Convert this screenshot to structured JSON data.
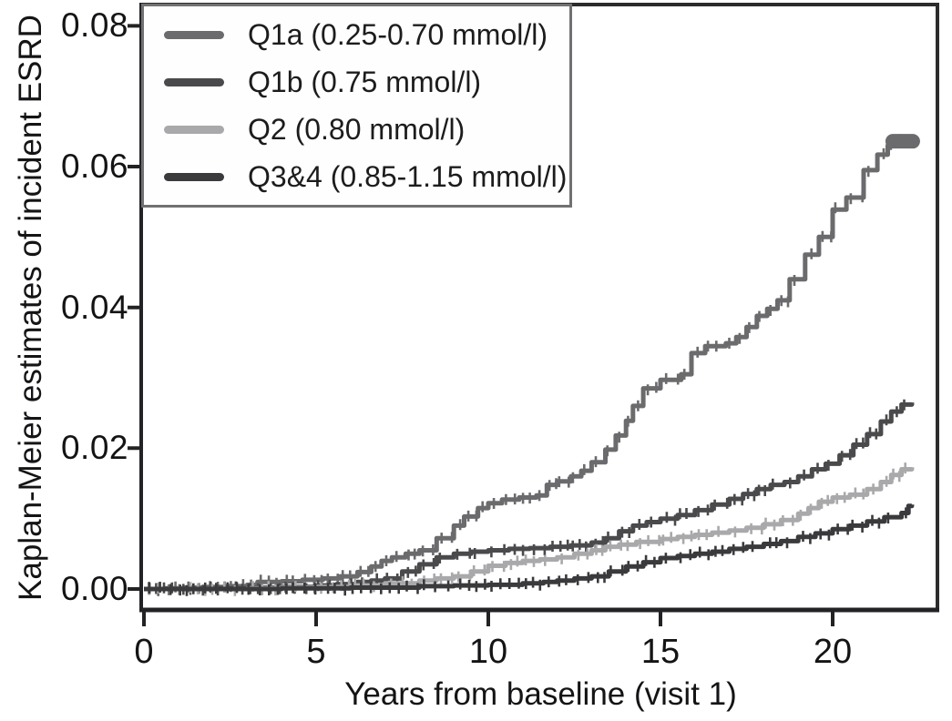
{
  "chart_data": {
    "type": "line",
    "subtype": "kaplan-meier-step-curves-with-censoring-ticks",
    "title": "",
    "xlabel": "Years from baseline (visit 1)",
    "ylabel": "Kaplan-Meier estimates of incident ESRD",
    "xlim": [
      0,
      23.1
    ],
    "ylim": [
      0,
      0.08
    ],
    "grid": false,
    "legend_position": "top-left",
    "background": "#ffffff",
    "axis_color": "#232325",
    "frame_color": "#2c2c2e",
    "xticks": [
      0,
      5,
      10,
      15,
      20
    ],
    "xtick_labels": [
      "0",
      "5",
      "10",
      "15",
      "20"
    ],
    "yticks": [
      0.08,
      0.06,
      0.04,
      0.02,
      0.0
    ],
    "ytick_labels": [
      "0.08",
      "0.06",
      "0.04",
      "0.02",
      "0.00"
    ],
    "series": [
      {
        "name": "Q1a",
        "label": "Q1a (0.25-0.70 mmol/l)",
        "color": "#6b6b6e",
        "end_cap": true,
        "points": [
          [
            0,
            0
          ],
          [
            0.6,
            0.0001
          ],
          [
            1.2,
            0.0002
          ],
          [
            1.8,
            0.0003
          ],
          [
            2.4,
            0.0004
          ],
          [
            3,
            0.0006
          ],
          [
            3.3,
            0.001
          ],
          [
            4,
            0.0011
          ],
          [
            4.6,
            0.0013
          ],
          [
            5.2,
            0.0015
          ],
          [
            5.7,
            0.0018
          ],
          [
            6.2,
            0.0024
          ],
          [
            6.6,
            0.0032
          ],
          [
            6.9,
            0.004
          ],
          [
            7.2,
            0.0045
          ],
          [
            7.6,
            0.005
          ],
          [
            8,
            0.0055
          ],
          [
            8.5,
            0.0072
          ],
          [
            9,
            0.009
          ],
          [
            9.3,
            0.0103
          ],
          [
            9.7,
            0.0115
          ],
          [
            10,
            0.0122
          ],
          [
            10.4,
            0.0127
          ],
          [
            10.9,
            0.013
          ],
          [
            11.4,
            0.0133
          ],
          [
            11.7,
            0.0148
          ],
          [
            12,
            0.0153
          ],
          [
            12.4,
            0.016
          ],
          [
            12.7,
            0.0168
          ],
          [
            13,
            0.018
          ],
          [
            13.4,
            0.0198
          ],
          [
            13.7,
            0.0218
          ],
          [
            14,
            0.0239
          ],
          [
            14.2,
            0.026
          ],
          [
            14.5,
            0.0285
          ],
          [
            15,
            0.0297
          ],
          [
            15.6,
            0.0305
          ],
          [
            15.9,
            0.0335
          ],
          [
            16.3,
            0.0345
          ],
          [
            16.9,
            0.0349
          ],
          [
            17.2,
            0.0358
          ],
          [
            17.5,
            0.0372
          ],
          [
            17.8,
            0.0388
          ],
          [
            18.1,
            0.0398
          ],
          [
            18.4,
            0.041
          ],
          [
            18.75,
            0.044
          ],
          [
            19.2,
            0.0475
          ],
          [
            19.6,
            0.05
          ],
          [
            20,
            0.0539
          ],
          [
            20.4,
            0.0556
          ],
          [
            20.9,
            0.0595
          ],
          [
            21.3,
            0.0617
          ],
          [
            21.6,
            0.063
          ],
          [
            21.8,
            0.0636
          ],
          [
            22.3,
            0.0636
          ]
        ]
      },
      {
        "name": "Q1b",
        "label": "Q1b (0.75 mmol/l)",
        "color": "#4a4a4d",
        "end_cap": false,
        "points": [
          [
            0,
            0
          ],
          [
            1,
            0
          ],
          [
            2,
            0.0001
          ],
          [
            3,
            0.0002
          ],
          [
            4,
            0.0003
          ],
          [
            5,
            0.0005
          ],
          [
            5.6,
            0.0007
          ],
          [
            6.2,
            0.001
          ],
          [
            6.6,
            0.0012
          ],
          [
            7,
            0.0015
          ],
          [
            7.5,
            0.0025
          ],
          [
            8,
            0.0035
          ],
          [
            8.5,
            0.0045
          ],
          [
            9,
            0.005
          ],
          [
            9.5,
            0.0053
          ],
          [
            10,
            0.0055
          ],
          [
            10.6,
            0.0057
          ],
          [
            11.2,
            0.0058
          ],
          [
            11.8,
            0.006
          ],
          [
            12.4,
            0.0062
          ],
          [
            13,
            0.0066
          ],
          [
            13.4,
            0.0072
          ],
          [
            13.8,
            0.0082
          ],
          [
            14.2,
            0.009
          ],
          [
            14.6,
            0.0095
          ],
          [
            15,
            0.01
          ],
          [
            15.5,
            0.0105
          ],
          [
            16,
            0.0112
          ],
          [
            16.5,
            0.012
          ],
          [
            17,
            0.0128
          ],
          [
            17.4,
            0.0135
          ],
          [
            17.8,
            0.0142
          ],
          [
            18.2,
            0.0148
          ],
          [
            18.6,
            0.0152
          ],
          [
            19,
            0.016
          ],
          [
            19.4,
            0.017
          ],
          [
            19.8,
            0.0178
          ],
          [
            20.2,
            0.019
          ],
          [
            20.6,
            0.0205
          ],
          [
            21,
            0.022
          ],
          [
            21.4,
            0.0238
          ],
          [
            21.7,
            0.0252
          ],
          [
            22,
            0.0262
          ],
          [
            22.3,
            0.0265
          ]
        ]
      },
      {
        "name": "Q2",
        "label": "Q2 (0.80 mmol/l)",
        "color": "#a9a9ab",
        "end_cap": false,
        "points": [
          [
            0,
            0
          ],
          [
            1.5,
            0
          ],
          [
            3,
            0.0001
          ],
          [
            4,
            0.0002
          ],
          [
            5,
            0.0003
          ],
          [
            6,
            0.0005
          ],
          [
            7,
            0.0008
          ],
          [
            8,
            0.0012
          ],
          [
            8.5,
            0.0015
          ],
          [
            9,
            0.0018
          ],
          [
            9.5,
            0.0025
          ],
          [
            10,
            0.0033
          ],
          [
            10.5,
            0.0037
          ],
          [
            11,
            0.004
          ],
          [
            11.5,
            0.0042
          ],
          [
            12,
            0.0045
          ],
          [
            12.5,
            0.005
          ],
          [
            13,
            0.0055
          ],
          [
            13.4,
            0.006
          ],
          [
            13.8,
            0.0063
          ],
          [
            14.3,
            0.0067
          ],
          [
            15,
            0.0071
          ],
          [
            15.5,
            0.0074
          ],
          [
            16,
            0.0077
          ],
          [
            16.5,
            0.008
          ],
          [
            17,
            0.0083
          ],
          [
            17.5,
            0.0087
          ],
          [
            18,
            0.0092
          ],
          [
            18.5,
            0.0098
          ],
          [
            19,
            0.0107
          ],
          [
            19.3,
            0.0115
          ],
          [
            19.6,
            0.0124
          ],
          [
            20,
            0.013
          ],
          [
            20.5,
            0.0134
          ],
          [
            21,
            0.0142
          ],
          [
            21.4,
            0.0152
          ],
          [
            21.7,
            0.0162
          ],
          [
            22,
            0.017
          ],
          [
            22.3,
            0.0173
          ]
        ]
      },
      {
        "name": "Q3&4",
        "label": "Q3&4 (0.85-1.15 mmol/l)",
        "color": "#3a3a3c",
        "end_cap": false,
        "points": [
          [
            0,
            0
          ],
          [
            2,
            0
          ],
          [
            4,
            0.0001
          ],
          [
            6,
            0.0002
          ],
          [
            8,
            0.0004
          ],
          [
            9,
            0.0005
          ],
          [
            10,
            0.0006
          ],
          [
            11,
            0.0008
          ],
          [
            11.6,
            0.001
          ],
          [
            12,
            0.0012
          ],
          [
            12.5,
            0.0015
          ],
          [
            13,
            0.0018
          ],
          [
            13.5,
            0.0025
          ],
          [
            14,
            0.0032
          ],
          [
            14.5,
            0.0038
          ],
          [
            15,
            0.0044
          ],
          [
            15.5,
            0.0047
          ],
          [
            16,
            0.005
          ],
          [
            16.5,
            0.0053
          ],
          [
            17,
            0.0057
          ],
          [
            17.5,
            0.006
          ],
          [
            18,
            0.0064
          ],
          [
            18.5,
            0.0068
          ],
          [
            19,
            0.0074
          ],
          [
            19.5,
            0.0079
          ],
          [
            20,
            0.0085
          ],
          [
            20.5,
            0.009
          ],
          [
            21,
            0.0096
          ],
          [
            21.5,
            0.0102
          ],
          [
            22,
            0.0108
          ],
          [
            22.2,
            0.0118
          ],
          [
            22.3,
            0.012
          ]
        ]
      }
    ]
  }
}
